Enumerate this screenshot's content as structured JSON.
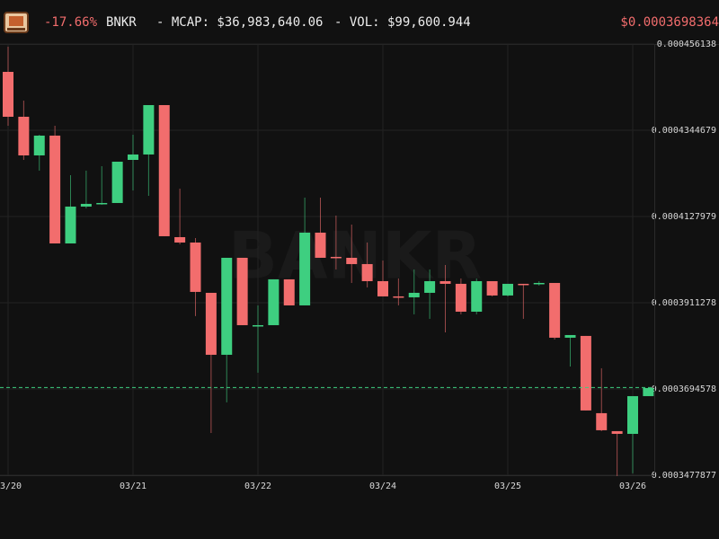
{
  "header": {
    "change": "-17.66%",
    "symbol": "BNKR",
    "mcap": "- MCAP: $36,983,640.06",
    "vol": "- VOL: $99,600.944"
  },
  "chart_data": {
    "type": "candlestick",
    "watermark": "BANKR",
    "categories": [
      "03/20",
      null,
      null,
      null,
      null,
      null,
      null,
      null,
      "03/21",
      null,
      null,
      null,
      null,
      null,
      null,
      null,
      "03/22",
      null,
      null,
      null,
      null,
      null,
      null,
      null,
      "03/24",
      null,
      null,
      null,
      null,
      null,
      null,
      null,
      "03/25",
      null,
      null,
      null,
      null,
      null,
      null,
      null,
      "03/26",
      null
    ],
    "open": [
      0.00044914,
      0.00043786,
      0.00042815,
      0.00043312,
      0.00040603,
      0.00041529,
      0.00041597,
      0.00041619,
      0.00042702,
      0.00042838,
      0.00044079,
      0.00040761,
      0.00040626,
      0.00039362,
      0.00037805,
      0.00040242,
      0.00038527,
      0.00038549,
      0.00039701,
      0.00039046,
      0.00040874,
      0.00040265,
      0.00040242,
      0.00040084,
      0.00039655,
      0.00039272,
      0.00039249,
      0.00039362,
      0.00039655,
      0.00039588,
      0.00038888,
      0.00039655,
      0.00039295,
      0.00039588,
      0.00039588,
      0.0003961,
      0.00038234,
      0.00038279,
      0.00036338,
      0.00035886,
      0.00035818,
      0.00036766
    ],
    "high": [
      0.00045546,
      0.00044192,
      0.00043334,
      0.0004356,
      0.00042319,
      0.00042432,
      0.00042544,
      0.00042657,
      0.00043334,
      0.00044079,
      0.00044079,
      0.0004198,
      0.00040739,
      0.00039362,
      0.00040242,
      0.00040242,
      0.00039046,
      0.00039701,
      0.00039701,
      0.00041754,
      0.00041754,
      0.00041303,
      0.00041077,
      0.00040626,
      0.00040175,
      0.00039723,
      0.00039949,
      0.00039949,
      0.00040062,
      0.00039723,
      0.00039723,
      0.00039655,
      0.00039588,
      0.00039588,
      0.00039655,
      0.0003961,
      0.00038301,
      0.00038279,
      0.00037466,
      0.00035886,
      0.00036766,
      0.00036969
    ],
    "low": [
      0.0004356,
      0.00042702,
      0.00042432,
      0.00040603,
      0.00040603,
      0.00041484,
      0.00041574,
      0.00041619,
      0.00041935,
      0.00041799,
      0.00040784,
      0.00040581,
      0.00038776,
      0.00035841,
      0.00036609,
      0.00038549,
      0.00037354,
      0.00038549,
      0.00039046,
      0.00039046,
      0.00040242,
      0.00039949,
      0.0003961,
      0.00039498,
      0.00039272,
      0.00039046,
      0.00038821,
      0.00038708,
      0.00038369,
      0.00038821,
      0.00038821,
      0.00039272,
      0.00039272,
      0.00038708,
      0.00039543,
      0.00038188,
      0.00037511,
      0.00036406,
      0.00035886,
      0.00034758,
      0.00034826,
      0.00036766
    ],
    "close": [
      0.00043786,
      0.00042815,
      0.00043312,
      0.00040603,
      0.00041529,
      0.00041597,
      0.00041619,
      0.00042657,
      0.00042838,
      0.00044079,
      0.00040784,
      0.00040626,
      0.00039385,
      0.00037805,
      0.00040242,
      0.00038549,
      0.00038549,
      0.00039701,
      0.00039046,
      0.00040874,
      0.00040242,
      0.00040242,
      0.00040084,
      0.00039655,
      0.00039272,
      0.00039249,
      0.00039362,
      0.00039655,
      0.00039588,
      0.00038888,
      0.00039655,
      0.00039295,
      0.00039588,
      0.00039566,
      0.0003961,
      0.00038234,
      0.00038301,
      0.00036406,
      0.00035909,
      0.00035818,
      0.00036766,
      0.00036969
    ],
    "up_color": "#3ecf80",
    "down_color": "#f26d6d",
    "last_price": {
      "value": 0.0003698364,
      "label": "$0.0003698364"
    },
    "ylim": [
      0.0003477877,
      0.000456138
    ],
    "yticks": [
      0.000456138,
      0.0004344679,
      0.0004127979,
      0.0003911278,
      0.0003694578,
      0.0003477877
    ],
    "grid": true
  }
}
